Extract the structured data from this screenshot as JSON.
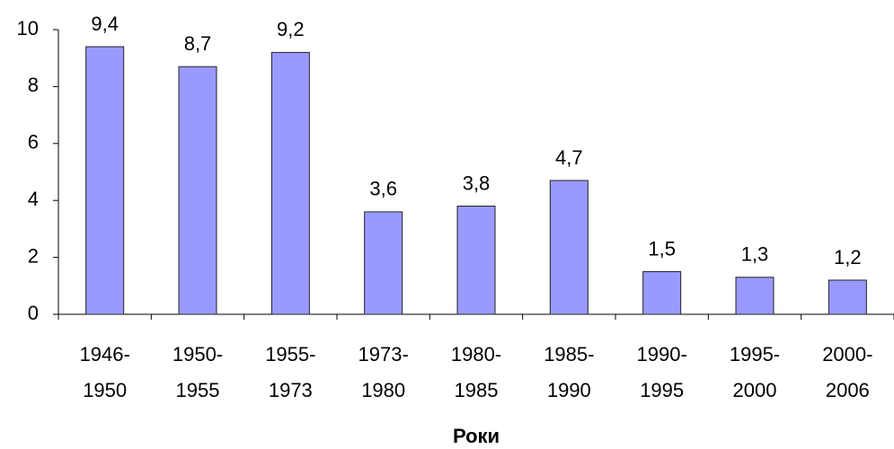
{
  "chart_data": {
    "type": "bar",
    "categories": [
      [
        "1946-",
        "1950"
      ],
      [
        "1950-",
        "1955"
      ],
      [
        "1955-",
        "1973"
      ],
      [
        "1973-",
        "1980"
      ],
      [
        "1980-",
        "1985"
      ],
      [
        "1985-",
        "1990"
      ],
      [
        "1990-",
        "1995"
      ],
      [
        "1995-",
        "2000"
      ],
      [
        "2000-",
        "2006"
      ]
    ],
    "values": [
      9.4,
      8.7,
      9.2,
      3.6,
      3.8,
      4.7,
      1.5,
      1.3,
      1.2
    ],
    "value_labels": [
      "9,4",
      "8,7",
      "9,2",
      "3,6",
      "3,8",
      "4,7",
      "1,5",
      "1,3",
      "1,2"
    ],
    "color": "#9999ff",
    "x_label": "Роки",
    "ylim": [
      0,
      10
    ],
    "yticks": [
      0,
      2,
      4,
      6,
      8,
      10
    ],
    "grid": false
  }
}
